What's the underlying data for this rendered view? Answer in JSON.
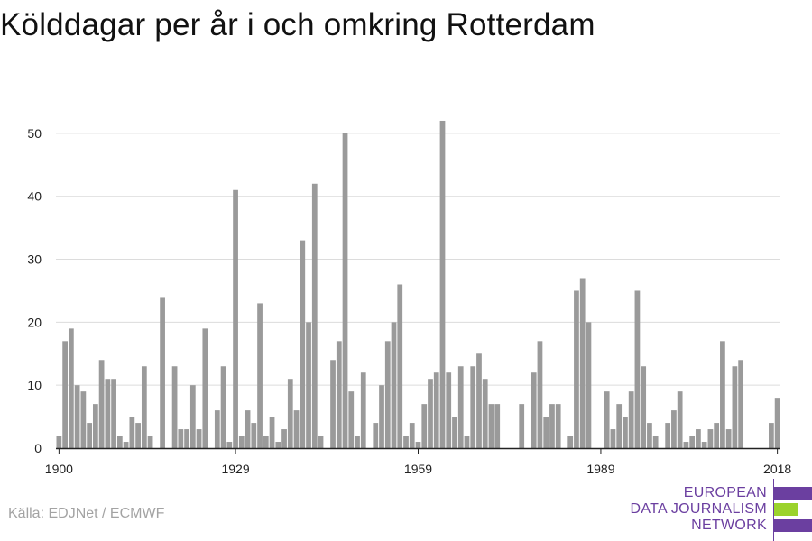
{
  "chart_data": {
    "type": "bar",
    "title": "Kölddagar per år i och omkring Rotterdam",
    "xlabel": "",
    "ylabel": "",
    "x": [
      1900,
      1901,
      1902,
      1903,
      1904,
      1905,
      1906,
      1907,
      1908,
      1909,
      1910,
      1911,
      1912,
      1913,
      1914,
      1915,
      1916,
      1917,
      1918,
      1919,
      1920,
      1921,
      1922,
      1923,
      1924,
      1925,
      1926,
      1927,
      1928,
      1929,
      1930,
      1931,
      1932,
      1933,
      1934,
      1935,
      1936,
      1937,
      1938,
      1939,
      1940,
      1941,
      1942,
      1943,
      1944,
      1945,
      1946,
      1947,
      1948,
      1949,
      1950,
      1951,
      1952,
      1953,
      1954,
      1955,
      1956,
      1957,
      1958,
      1959,
      1960,
      1961,
      1962,
      1963,
      1964,
      1965,
      1966,
      1967,
      1968,
      1969,
      1970,
      1971,
      1972,
      1973,
      1974,
      1975,
      1976,
      1977,
      1978,
      1979,
      1980,
      1981,
      1982,
      1983,
      1984,
      1985,
      1986,
      1987,
      1988,
      1989,
      1990,
      1991,
      1992,
      1993,
      1994,
      1995,
      1996,
      1997,
      1998,
      1999,
      2000,
      2001,
      2002,
      2003,
      2004,
      2005,
      2006,
      2007,
      2008,
      2009,
      2010,
      2011,
      2012,
      2013,
      2014,
      2015,
      2016,
      2017,
      2018
    ],
    "values": [
      2,
      17,
      19,
      10,
      9,
      4,
      7,
      14,
      11,
      11,
      2,
      1,
      5,
      4,
      13,
      2,
      0,
      24,
      0,
      13,
      3,
      3,
      10,
      3,
      19,
      0,
      6,
      13,
      1,
      41,
      2,
      6,
      4,
      23,
      2,
      5,
      1,
      3,
      11,
      6,
      33,
      20,
      42,
      2,
      0,
      14,
      17,
      50,
      9,
      2,
      12,
      0,
      4,
      10,
      17,
      20,
      26,
      2,
      4,
      1,
      7,
      11,
      12,
      52,
      12,
      5,
      13,
      2,
      13,
      15,
      11,
      7,
      7,
      0,
      0,
      0,
      7,
      0,
      12,
      17,
      5,
      7,
      7,
      0,
      2,
      25,
      27,
      20,
      0,
      0,
      9,
      3,
      7,
      5,
      9,
      25,
      13,
      4,
      2,
      0,
      4,
      6,
      9,
      1,
      2,
      3,
      1,
      3,
      4,
      17,
      3,
      13,
      14,
      0,
      0,
      0,
      0,
      4,
      8
    ],
    "x_ticks": [
      1900,
      1929,
      1959,
      1989,
      2018
    ],
    "y_ticks": [
      0,
      10,
      20,
      30,
      40,
      50
    ],
    "ylim": [
      0,
      54
    ],
    "xlim": [
      1899.5,
      2018.5
    ],
    "grid": true,
    "legend": "none",
    "bar_color": "#9a9a9a",
    "grid_color": "#dcdcdc",
    "axis_color": "#222222"
  },
  "footer": {
    "source": "Källa: EDJNet / ECMWF",
    "logo_lines": [
      "EUROPEAN",
      "DATA JOURNALISM",
      "NETWORK"
    ],
    "logo_purple": "#6b3fa0",
    "logo_green": "#9bd32c"
  }
}
